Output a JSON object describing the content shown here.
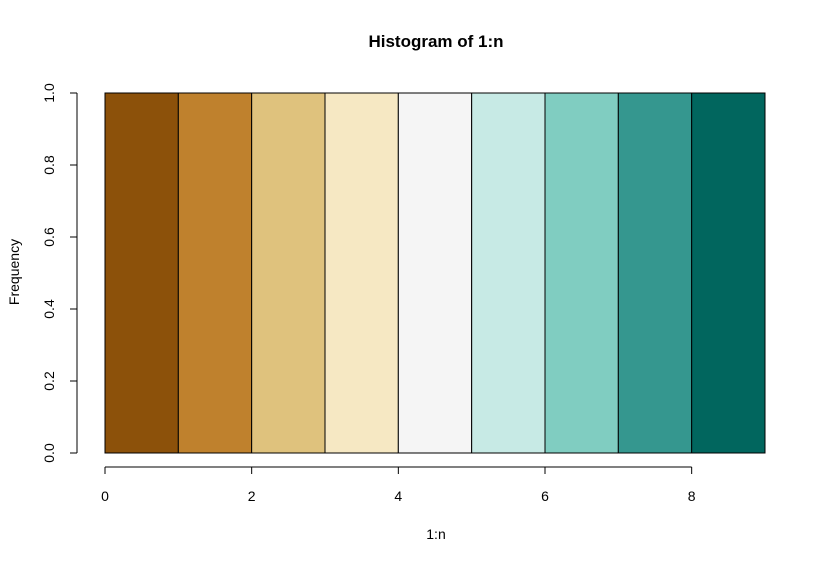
{
  "chart_data": {
    "type": "bar",
    "title": "Histogram of 1:n",
    "xlabel": "1:n",
    "ylabel": "Frequency",
    "xlim": [
      0,
      9
    ],
    "ylim": [
      0,
      1
    ],
    "bins": [
      {
        "x0": 0,
        "x1": 1,
        "value": 1,
        "color": "#8C510A"
      },
      {
        "x0": 1,
        "x1": 2,
        "value": 1,
        "color": "#BF812D"
      },
      {
        "x0": 2,
        "x1": 3,
        "value": 1,
        "color": "#DFC27D"
      },
      {
        "x0": 3,
        "x1": 4,
        "value": 1,
        "color": "#F6E8C3"
      },
      {
        "x0": 4,
        "x1": 5,
        "value": 1,
        "color": "#F5F5F5"
      },
      {
        "x0": 5,
        "x1": 6,
        "value": 1,
        "color": "#C7EAE5"
      },
      {
        "x0": 6,
        "x1": 7,
        "value": 1,
        "color": "#80CDC1"
      },
      {
        "x0": 7,
        "x1": 8,
        "value": 1,
        "color": "#35978F"
      },
      {
        "x0": 8,
        "x1": 9,
        "value": 1,
        "color": "#01665E"
      }
    ],
    "x_ticks": [
      0,
      2,
      4,
      6,
      8
    ],
    "x_tick_labels": [
      "0",
      "2",
      "4",
      "6",
      "8"
    ],
    "y_ticks": [
      0,
      0.2,
      0.4,
      0.6,
      0.8,
      1.0
    ],
    "y_tick_labels": [
      "0.0",
      "0.2",
      "0.4",
      "0.6",
      "0.8",
      "1.0"
    ],
    "grid": false,
    "legend": "none"
  }
}
